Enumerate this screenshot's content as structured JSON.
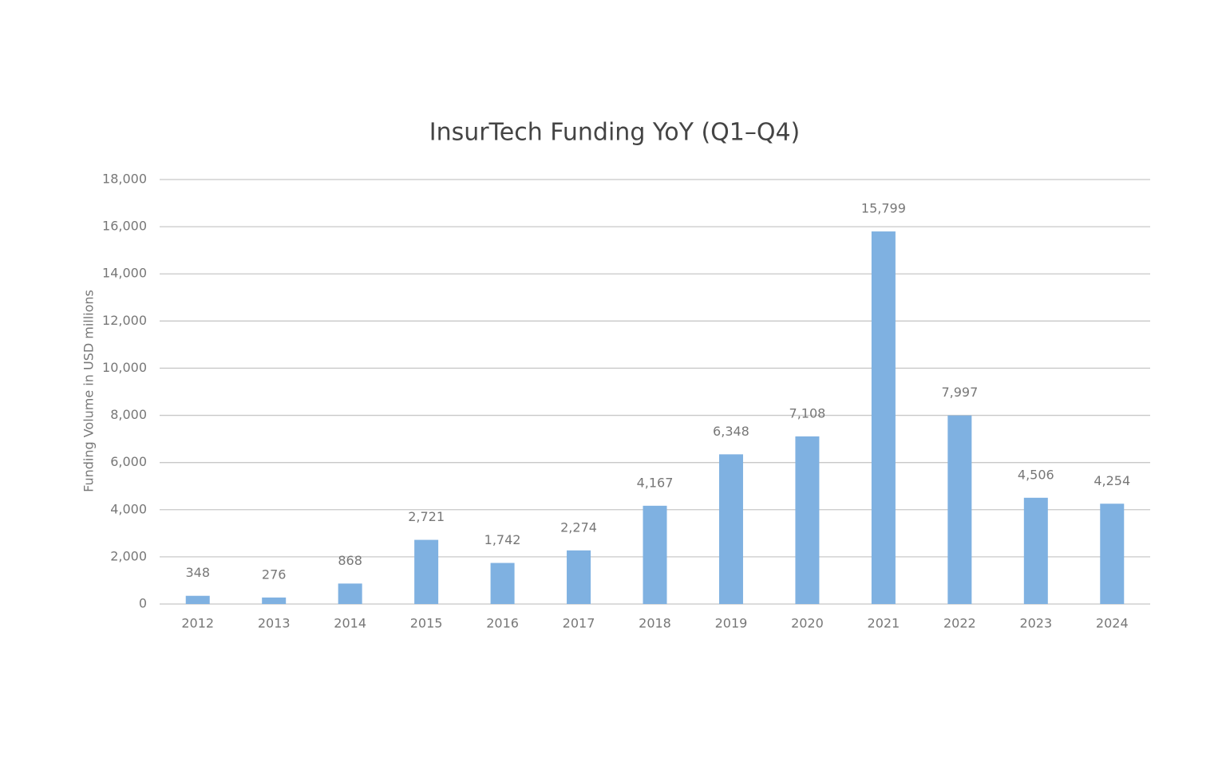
{
  "chart_data": {
    "type": "bar",
    "title": "InsurTech Funding YoY (Q1–Q4)",
    "y_label": "Funding Volume in USD millions",
    "categories": [
      "2012",
      "2013",
      "2014",
      "2015",
      "2016",
      "2017",
      "2018",
      "2019",
      "2020",
      "2021",
      "2022",
      "2023",
      "2024"
    ],
    "values": [
      348,
      276,
      868,
      2721,
      1742,
      2274,
      4167,
      6348,
      7108,
      15799,
      7997,
      4506,
      4254
    ],
    "value_labels": [
      "348",
      "276",
      "868",
      "2,721",
      "1,742",
      "2,274",
      "4,167",
      "6,348",
      "7,108",
      "15,799",
      "7,997",
      "4,506",
      "4,254"
    ],
    "color": "#7fb1e1",
    "ylim": [
      0,
      18000
    ],
    "yticks": [
      0,
      {
        "value": 2000,
        "label": "2,000"
      },
      {
        "value": 4000,
        "label": "4,000"
      },
      {
        "value": 6000,
        "label": "6,000"
      },
      {
        "value": 8000,
        "label": "8,000"
      },
      {
        "value": 10000,
        "label": "10,000"
      },
      {
        "value": 12000,
        "label": "12,000"
      },
      {
        "value": 14000,
        "label": "14,000"
      },
      {
        "value": 16000,
        "label": "16,000"
      },
      {
        "value": 18000,
        "label": "18,000"
      }
    ],
    "grid": true
  }
}
